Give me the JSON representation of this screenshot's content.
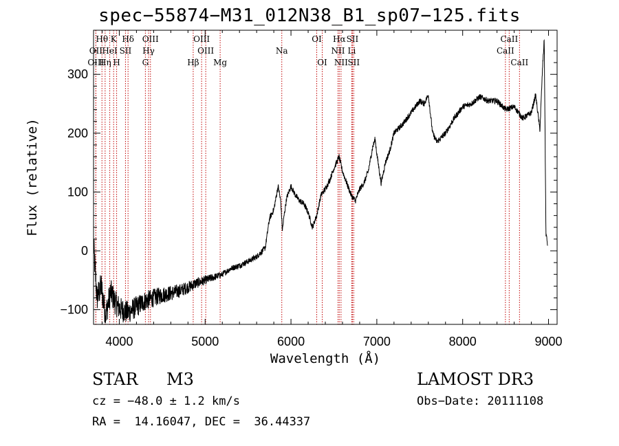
{
  "chart_data": {
    "type": "line",
    "title": "spec−55874−M31_012N38_B1_sp07−125.fits",
    "xlabel": "Wavelength (Å)",
    "ylabel": "Flux (relative)",
    "xlim": [
      3700,
      9100
    ],
    "ylim": [
      -125,
      375
    ],
    "x_ticks": [
      4000,
      5000,
      6000,
      7000,
      8000,
      9000
    ],
    "x_tick_labels": [
      "4000",
      "5000",
      "6000",
      "7000",
      "8000",
      "9000"
    ],
    "y_ticks": [
      -100,
      0,
      100,
      200,
      300
    ],
    "y_tick_labels": [
      "−100",
      "0",
      "100",
      "200",
      "300"
    ],
    "spectrum_anchors": [
      [
        3700,
        10
      ],
      [
        3740,
        -80
      ],
      [
        3790,
        -60
      ],
      [
        3840,
        -110
      ],
      [
        3900,
        -70
      ],
      [
        3960,
        -90
      ],
      [
        4020,
        -100
      ],
      [
        4100,
        -105
      ],
      [
        4200,
        -95
      ],
      [
        4300,
        -85
      ],
      [
        4400,
        -80
      ],
      [
        4500,
        -75
      ],
      [
        4600,
        -72
      ],
      [
        4700,
        -68
      ],
      [
        4800,
        -62
      ],
      [
        4900,
        -55
      ],
      [
        5000,
        -50
      ],
      [
        5100,
        -45
      ],
      [
        5200,
        -40
      ],
      [
        5300,
        -30
      ],
      [
        5400,
        -25
      ],
      [
        5500,
        -18
      ],
      [
        5600,
        -10
      ],
      [
        5700,
        5
      ],
      [
        5750,
        55
      ],
      [
        5800,
        70
      ],
      [
        5850,
        110
      ],
      [
        5880,
        85
      ],
      [
        5900,
        35
      ],
      [
        5920,
        60
      ],
      [
        5950,
        90
      ],
      [
        6000,
        110
      ],
      [
        6050,
        95
      ],
      [
        6100,
        85
      ],
      [
        6150,
        80
      ],
      [
        6200,
        65
      ],
      [
        6250,
        40
      ],
      [
        6300,
        60
      ],
      [
        6350,
        95
      ],
      [
        6400,
        105
      ],
      [
        6450,
        120
      ],
      [
        6500,
        140
      ],
      [
        6560,
        160
      ],
      [
        6600,
        135
      ],
      [
        6650,
        115
      ],
      [
        6700,
        95
      ],
      [
        6750,
        85
      ],
      [
        6800,
        105
      ],
      [
        6850,
        115
      ],
      [
        6900,
        135
      ],
      [
        6950,
        175
      ],
      [
        6980,
        190
      ],
      [
        7000,
        165
      ],
      [
        7050,
        115
      ],
      [
        7100,
        150
      ],
      [
        7150,
        170
      ],
      [
        7200,
        200
      ],
      [
        7300,
        215
      ],
      [
        7400,
        235
      ],
      [
        7500,
        255
      ],
      [
        7550,
        250
      ],
      [
        7600,
        265
      ],
      [
        7650,
        200
      ],
      [
        7700,
        185
      ],
      [
        7800,
        200
      ],
      [
        7900,
        225
      ],
      [
        8000,
        245
      ],
      [
        8100,
        250
      ],
      [
        8200,
        262
      ],
      [
        8300,
        255
      ],
      [
        8400,
        255
      ],
      [
        8500,
        240
      ],
      [
        8600,
        245
      ],
      [
        8700,
        225
      ],
      [
        8800,
        235
      ],
      [
        8850,
        265
      ],
      [
        8900,
        205
      ],
      [
        8930,
        310
      ],
      [
        8950,
        360
      ],
      [
        8970,
        30
      ],
      [
        8990,
        10
      ]
    ],
    "noise_amplitude_low_wavelength": 40,
    "noise_amplitude_high_wavelength": 10,
    "line_color": "#000000",
    "marker_line_color": "#c00000",
    "spectral_lines": [
      {
        "label": "Hθ",
        "wavelength": 3798,
        "row": 1
      },
      {
        "label": "OII",
        "wavelength": 3727,
        "row": 2
      },
      {
        "label": "OIII",
        "wavelength": 3727,
        "row": 3
      },
      {
        "label": "HeI",
        "wavelength": 3889,
        "row": 2
      },
      {
        "label": "Hη",
        "wavelength": 3835,
        "row": 3
      },
      {
        "label": "K",
        "wavelength": 3934,
        "row": 1
      },
      {
        "label": "SII",
        "wavelength": 4072,
        "row": 2
      },
      {
        "label": "H",
        "wavelength": 3969,
        "row": 3
      },
      {
        "label": "Hδ",
        "wavelength": 4102,
        "row": 1
      },
      {
        "label": "OIII",
        "wavelength": 4363,
        "row": 1
      },
      {
        "label": "Hγ",
        "wavelength": 4341,
        "row": 2
      },
      {
        "label": "G",
        "wavelength": 4304,
        "row": 3
      },
      {
        "label": "Hβ",
        "wavelength": 4861,
        "row": 3
      },
      {
        "label": "OIII",
        "wavelength": 4959,
        "row": 1
      },
      {
        "label": "OIII",
        "wavelength": 5007,
        "row": 2
      },
      {
        "label": "Mg",
        "wavelength": 5175,
        "row": 3
      },
      {
        "label": "Na",
        "wavelength": 5893,
        "row": 2
      },
      {
        "label": "OI",
        "wavelength": 6300,
        "row": 1
      },
      {
        "label": "OI",
        "wavelength": 6364,
        "row": 3
      },
      {
        "label": "Hα",
        "wavelength": 6563,
        "row": 1
      },
      {
        "label": "NII",
        "wavelength": 6548,
        "row": 2
      },
      {
        "label": "NII",
        "wavelength": 6583,
        "row": 3
      },
      {
        "label": "SII",
        "wavelength": 6716,
        "row": 1
      },
      {
        "label": "Li",
        "wavelength": 6708,
        "row": 2
      },
      {
        "label": "SII",
        "wavelength": 6731,
        "row": 3
      },
      {
        "label": "CaII",
        "wavelength": 8542,
        "row": 1
      },
      {
        "label": "CaII",
        "wavelength": 8498,
        "row": 2
      },
      {
        "label": "CaII",
        "wavelength": 8662,
        "row": 3
      }
    ]
  },
  "info": {
    "object_class": "STAR",
    "subclass": "M3",
    "survey": "LAMOST DR3",
    "redshift_line": "cz = −48.0 ± 1.2 km/s",
    "obs_date_line": "Obs−Date: 20111108",
    "coords_line": "RA =  14.16047, DEC =  36.44337"
  }
}
